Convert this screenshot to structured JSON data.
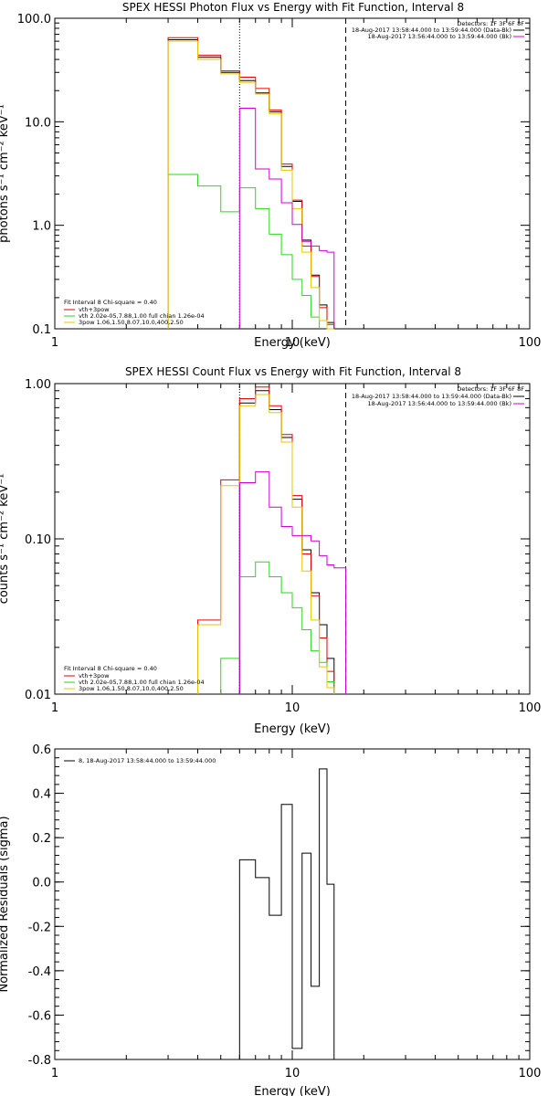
{
  "colors": {
    "black": "#000000",
    "red": "#e8000b",
    "green": "#2bd61f",
    "yellow": "#e6c700",
    "magenta": "#d000d0"
  },
  "chart_data": [
    {
      "type": "line",
      "title": "SPEX HESSI Photon Flux vs Energy with Fit Function, Interval 8",
      "xlabel": "Energy (keV)",
      "ylabel": "photons s⁻¹ cm⁻² keV⁻¹",
      "xscale": "log",
      "yscale": "log",
      "xlim": [
        1,
        100
      ],
      "ylim": [
        0.1,
        100
      ],
      "xticks": [
        "1",
        "10",
        "100"
      ],
      "yticks": [
        "0.1",
        "1.0",
        "10.0",
        "100.0"
      ],
      "legend_top": [
        "Detectors: 1F 3F 6F 8F",
        "18-Aug-2017 13:58:44.000 to 13:59:44.000 (Data-Bk)",
        "18-Aug-2017 13:56:44.000 to 13:59:44.000 (Bk)"
      ],
      "legend_bottom": [
        "Fit Interval 8   Chi-square = 0.40",
        "vth+3pow",
        "vth 2.02e-05,7.88,1.00  full chian 1.26e-04",
        "3pow 1.06,1.50,8.07,10.0,400,2.50"
      ],
      "vlines": [
        6.0,
        16.8
      ],
      "edges": [
        3,
        4,
        5,
        6,
        7,
        8,
        9,
        10,
        11,
        12,
        13,
        14,
        15,
        16.8
      ],
      "series": [
        {
          "name": "Data-Bk",
          "values": [
            62,
            42,
            30,
            25,
            19,
            12.5,
            3.7,
            1.7,
            0.72,
            0.33,
            0.17,
            0.115,
            null
          ]
        },
        {
          "name": "vth+3pow",
          "values": [
            65,
            44,
            31,
            27,
            21,
            13,
            3.9,
            1.75,
            0.63,
            0.32,
            0.16,
            0.11,
            null
          ]
        },
        {
          "name": "vth",
          "values": [
            3.1,
            2.4,
            1.35,
            2.3,
            1.45,
            0.82,
            0.52,
            0.3,
            0.21,
            0.13,
            null,
            null,
            null
          ]
        },
        {
          "name": "3pow",
          "values": [
            60,
            40,
            29,
            24,
            18.5,
            12,
            3.4,
            1.45,
            0.55,
            0.25,
            0.12,
            0.1,
            null
          ]
        },
        {
          "name": "Bk",
          "values": [
            null,
            null,
            null,
            13.5,
            3.5,
            2.8,
            1.65,
            1.02,
            0.7,
            0.63,
            0.57,
            0.55,
            null
          ]
        }
      ]
    },
    {
      "type": "line",
      "title": "SPEX HESSI Count Flux vs Energy with Fit Function, Interval 8",
      "xlabel": "Energy (keV)",
      "ylabel": "counts s⁻¹ cm⁻² keV⁻¹",
      "xscale": "log",
      "yscale": "log",
      "xlim": [
        1,
        100
      ],
      "ylim": [
        0.01,
        1
      ],
      "xticks": [
        "1",
        "10",
        "100"
      ],
      "yticks": [
        "0.01",
        "0.10",
        "1.00"
      ],
      "legend_top": [
        "Detectors: 1F 3F 6F 8F",
        "18-Aug-2017 13:58:44.000 to 13:59:44.000 (Data-Bk)",
        "18-Aug-2017 13:56:44.000 to 13:59:44.000 (Bk)"
      ],
      "legend_bottom": [
        "Fit Interval 8   Chi-square = 0.40",
        "vth+3pow",
        "vth 2.02e-05,7.88,1.00  full chian 1.26e-04",
        "3pow 1.06,1.50,8.07,10.0,400,2.50"
      ],
      "vlines": [
        6.0,
        16.8
      ],
      "edges": [
        4,
        5,
        6,
        7,
        8,
        9,
        10,
        11,
        12,
        13,
        14,
        15,
        16.8
      ],
      "series": [
        {
          "name": "Data-Bk",
          "values": [
            null,
            null,
            0.75,
            0.9,
            0.68,
            0.45,
            0.18,
            0.085,
            0.045,
            0.028,
            0.017,
            null
          ]
        },
        {
          "name": "vth+3pow",
          "values": [
            0.03,
            0.24,
            0.8,
            0.95,
            0.72,
            0.47,
            0.19,
            0.08,
            0.043,
            0.023,
            0.014,
            null
          ]
        },
        {
          "name": "vth",
          "values": [
            null,
            0.017,
            0.057,
            0.071,
            0.057,
            0.045,
            0.036,
            0.026,
            0.019,
            0.016,
            0.012,
            null
          ]
        },
        {
          "name": "3pow",
          "values": [
            0.028,
            0.22,
            0.72,
            0.85,
            0.65,
            0.42,
            0.16,
            0.062,
            0.03,
            0.015,
            0.011,
            null
          ]
        },
        {
          "name": "Bk",
          "values": [
            null,
            null,
            0.23,
            0.27,
            0.16,
            0.12,
            0.105,
            0.105,
            0.097,
            0.078,
            0.068,
            0.065
          ]
        }
      ]
    },
    {
      "type": "line",
      "xlabel": "Energy (keV)",
      "ylabel": "Normalized Residuals (sigma)",
      "xscale": "log",
      "xlim": [
        1,
        100
      ],
      "ylim": [
        -0.8,
        0.6
      ],
      "xticks": [
        "1",
        "10",
        "100"
      ],
      "yticks": [
        "-0.8",
        "-0.6",
        "-0.4",
        "-0.2",
        "0.0",
        "0.2",
        "0.4",
        "0.6"
      ],
      "legend": [
        "8, 18-Aug-2017 13:58:44.000 to 13:59:44.000"
      ],
      "edges": [
        6,
        7,
        8,
        9,
        10,
        11,
        12,
        13,
        14,
        15,
        16.8
      ],
      "series": [
        {
          "name": "8, 18-Aug-2017 13:58:44.000 to 13:59:44.000",
          "values": [
            0.1,
            0.02,
            -0.15,
            0.35,
            -0.75,
            0.13,
            -0.47,
            0.51,
            -0.01,
            null
          ]
        }
      ]
    }
  ]
}
